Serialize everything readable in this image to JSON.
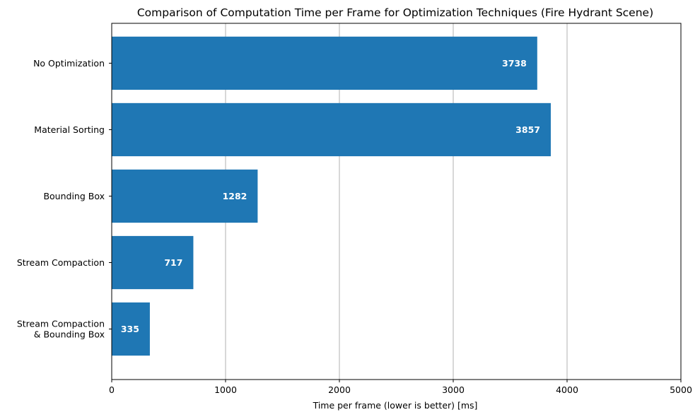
{
  "chart_data": {
    "type": "bar",
    "orientation": "horizontal",
    "title": "Comparison of Computation Time per Frame for Optimization Techniques (Fire Hydrant Scene)",
    "xlabel": "Time per frame (lower is better) [ms]",
    "ylabel": "",
    "categories": [
      "No Optimization",
      "Material Sorting",
      "Bounding Box",
      "Stream Compaction",
      "Stream Compaction\n& Bounding Box"
    ],
    "values": [
      3738,
      3857,
      1282,
      717,
      335
    ],
    "xlim": [
      0,
      5000
    ],
    "xticks": [
      0,
      1000,
      2000,
      3000,
      4000,
      5000
    ],
    "grid": "x-axis vertical lines",
    "bar_color": "#1f77b4",
    "data_labels": true
  }
}
